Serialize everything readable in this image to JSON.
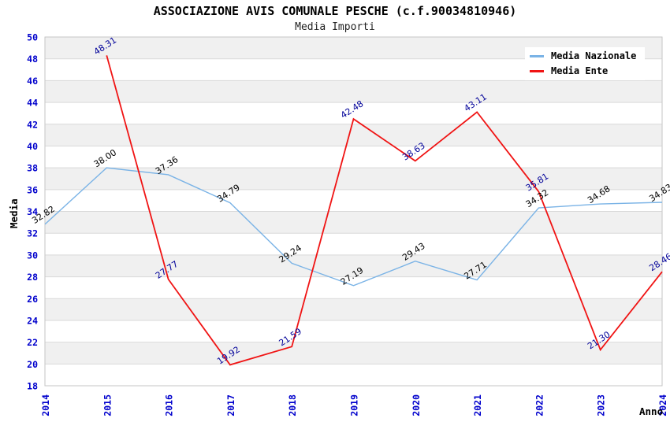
{
  "header": {
    "title": "ASSOCIAZIONE AVIS COMUNALE PESCHE (c.f.90034810946)",
    "subtitle": "Media Importi"
  },
  "chart_data": {
    "type": "line",
    "title": "ASSOCIAZIONE AVIS COMUNALE PESCHE (c.f.90034810946)",
    "subtitle": "Media Importi",
    "xlabel": "Anno",
    "ylabel": "Media",
    "ylim": [
      18,
      50
    ],
    "ytick_step": 2,
    "grid": "horizontal-bands",
    "legend_position": "top-right",
    "band_colors": [
      "#f0f0f0",
      "#ffffff"
    ],
    "axis_tick_color": "#0000cc",
    "categories": [
      "2014",
      "2015",
      "2016",
      "2017",
      "2018",
      "2019",
      "2020",
      "2021",
      "2022",
      "2023",
      "2024"
    ],
    "series": [
      {
        "name": "Media Nazionale",
        "color": "#7ab3e6",
        "label_color": "#000000",
        "values": [
          32.82,
          38.0,
          37.36,
          34.79,
          29.24,
          27.19,
          29.43,
          27.71,
          34.32,
          34.68,
          34.83
        ]
      },
      {
        "name": "Media Ente",
        "color": "#f01414",
        "label_color": "#000099",
        "values": [
          null,
          48.31,
          27.77,
          19.92,
          21.59,
          42.48,
          38.63,
          43.11,
          35.81,
          21.3,
          28.46
        ]
      }
    ]
  }
}
